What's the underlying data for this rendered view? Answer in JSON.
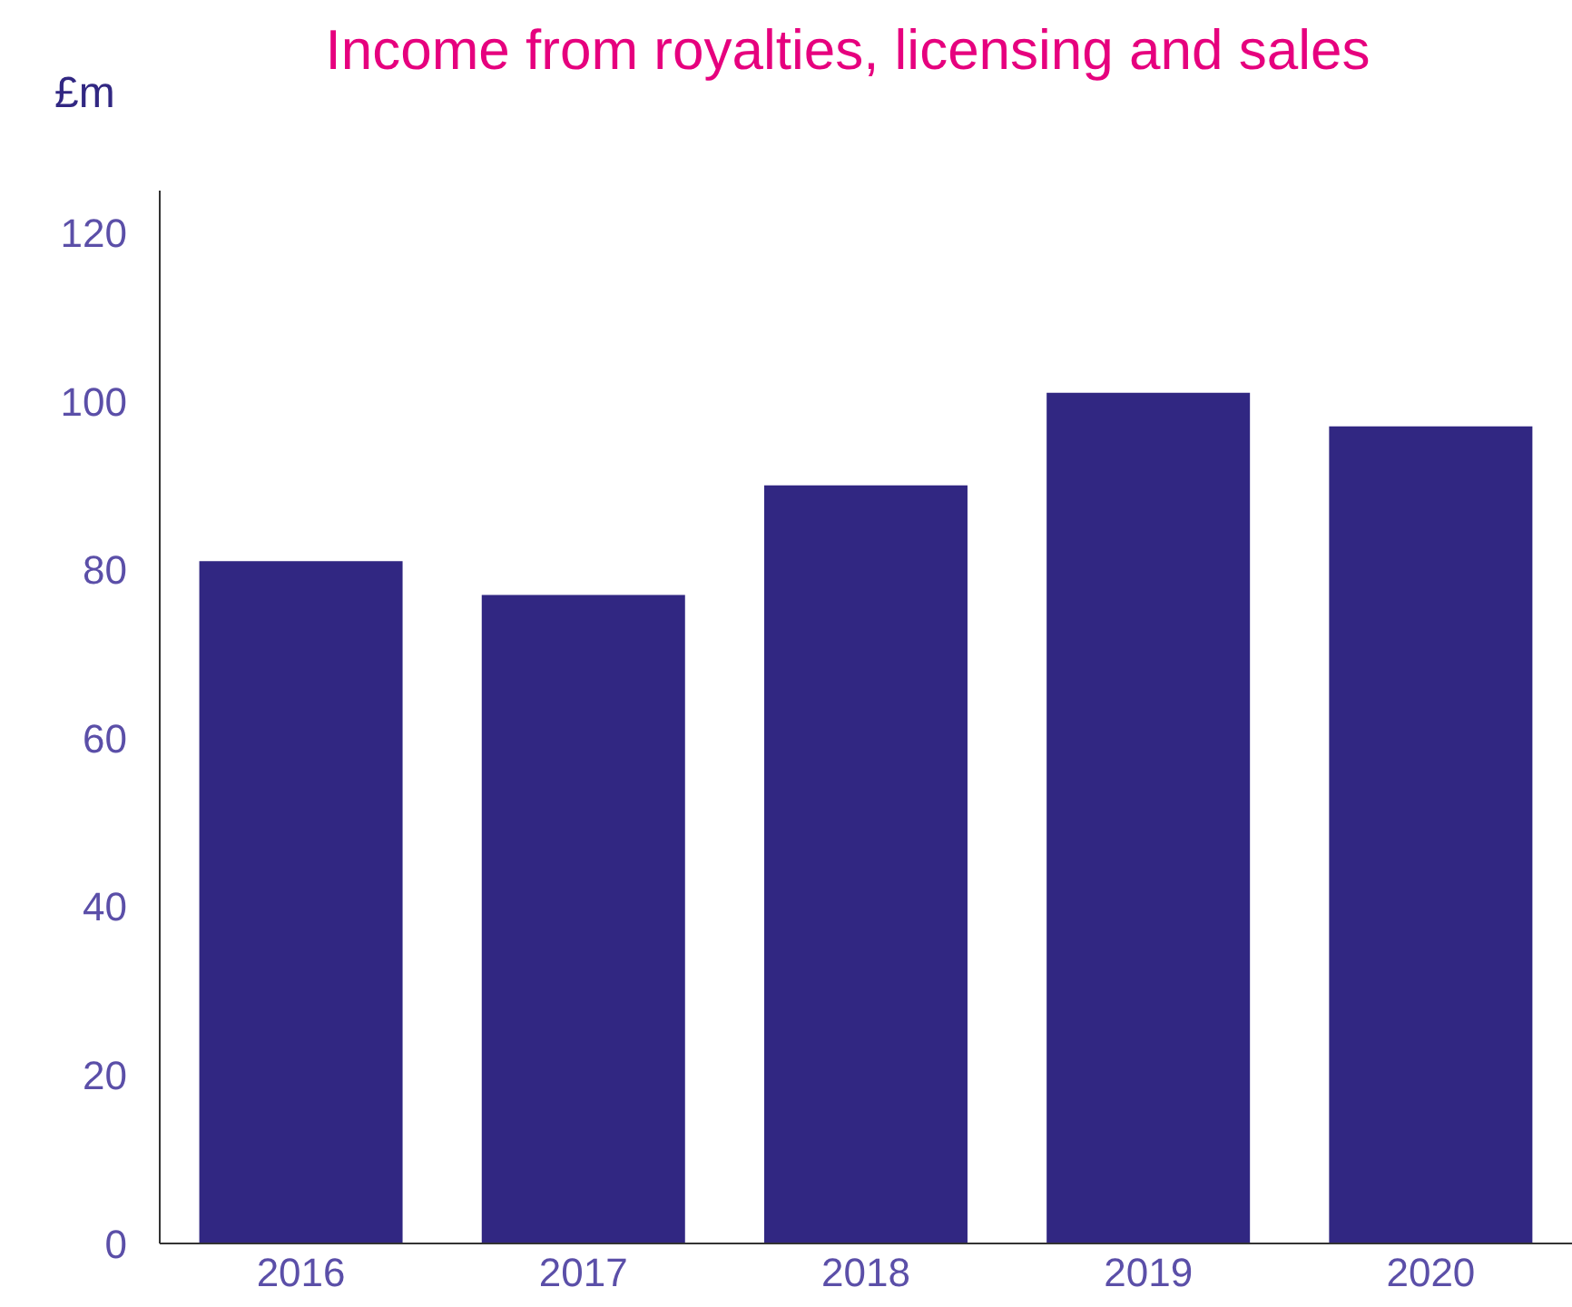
{
  "chart_data": {
    "type": "bar",
    "title": "Income from royalties, licensing and sales",
    "ylabel": "£m",
    "categories": [
      "2016",
      "2017",
      "2018",
      "2019",
      "2020"
    ],
    "values": [
      81,
      77,
      90,
      101,
      97
    ],
    "color": "#312782",
    "ylim": [
      0,
      125
    ],
    "yticks": [
      0,
      20,
      40,
      60,
      80,
      100,
      120
    ],
    "grid": false,
    "legend": false
  }
}
